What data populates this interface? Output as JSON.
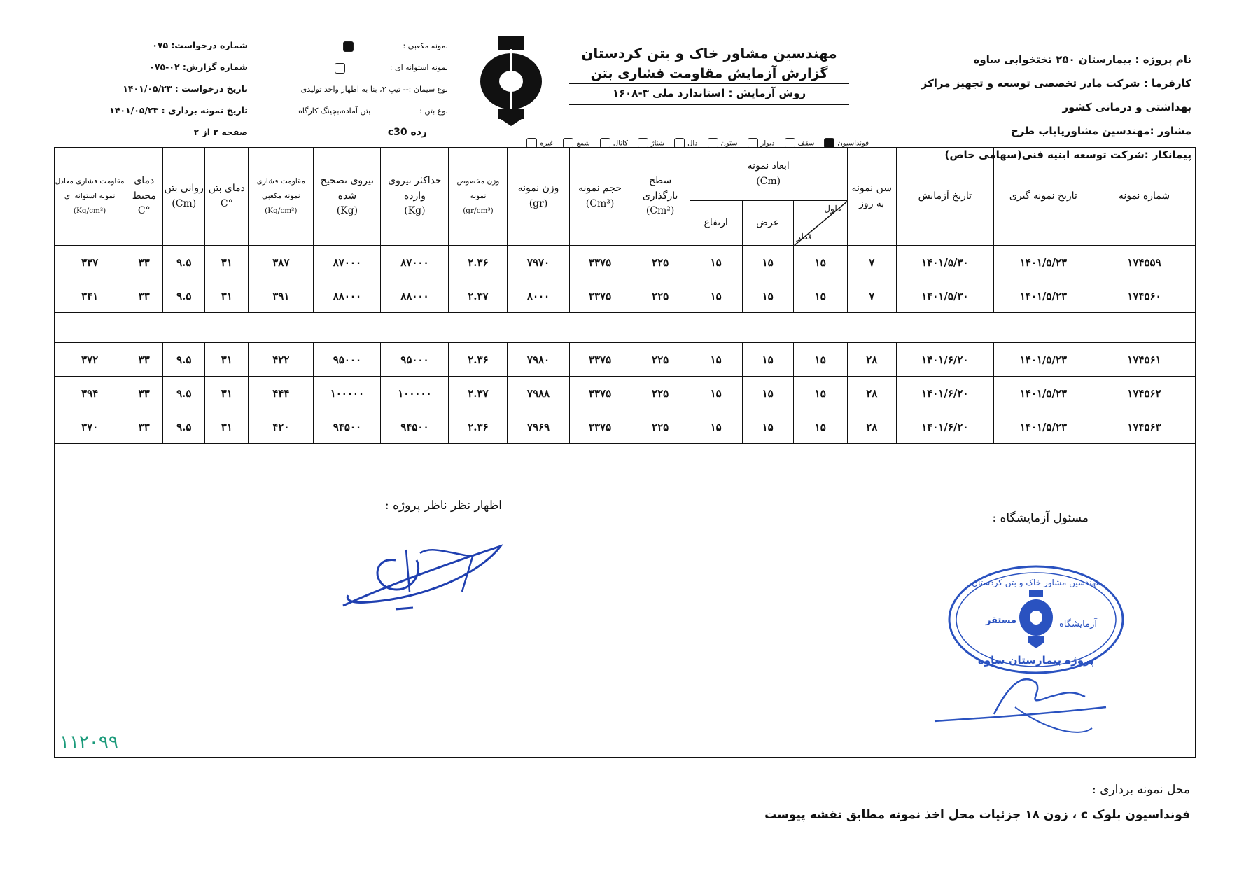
{
  "header": {
    "project": "نام پروژه : بیمارستان ۲۵۰ تختخوابی ساوه",
    "employer_line1": "کارفرما : شرکت مادر تخصصی توسعه و تجهیز مراکز",
    "employer_line2": "بهداشتی و درمانی کشور",
    "consultant": "مشاور :مهندسین مشاورپایاب طرح",
    "contractor": "پیمانکار :شرکت توسعه ابنیه فنی(سهامی خاص)",
    "company": "مهندسین مشاور خاک و بتن کردستان",
    "report_title": "گزارش آزمایش مقاومت فشاری بتن",
    "test_method": "روش آزمایش : استاندارد ملی ۳-۱۶۰۸",
    "request_no": "شماره درخواست: ۰۷۵",
    "report_no": "شماره گزارش: ۰۲-۰۷۵",
    "request_date": "تاریخ درخواست : ۱۴۰۱/۰۵/۲۳",
    "sampling_date": "تاریخ نمونه برداری : ۱۴۰۱/۰۵/۲۳",
    "page": "صفحه ۲ از ۲",
    "cube_sample_label": "نمونه مکعبی :",
    "cube_sample_checked": true,
    "cylinder_sample_label": "نمونه استوانه ای :",
    "cylinder_sample_checked": false,
    "cement_type": "نوع سیمان :-- تیپ ۲، بنا به اظهار واحد تولیدی",
    "concrete_type_label": "نوع بتن :",
    "concrete_type_value": "بتن آماده،بچینگ کارگاه",
    "grade": "رده  c30",
    "elements": [
      {
        "label": "فونداسیون",
        "checked": true
      },
      {
        "label": "سقف",
        "checked": false
      },
      {
        "label": "دیوار",
        "checked": false
      },
      {
        "label": "ستون",
        "checked": false
      },
      {
        "label": "دال",
        "checked": false
      },
      {
        "label": "شناژ",
        "checked": false
      },
      {
        "label": "کانال",
        "checked": false
      },
      {
        "label": "شمع",
        "checked": false
      },
      {
        "label": "غیره",
        "checked": false
      }
    ]
  },
  "table": {
    "headers": {
      "sample_no": "شماره نمونه",
      "sampling_date": "تاریخ نمونه گیری",
      "test_date": "تاریخ آزمایش",
      "age": "سن نمونه به روز",
      "dims": "ابعاد نمونه",
      "dims_unit": "(Cm)",
      "length": "طول",
      "diameter": "قطر",
      "width": "عرض",
      "height": "ارتفاع",
      "area": "سطح بارگذاری",
      "area_unit": "(Cm²)",
      "volume": "حجم نمونه",
      "volume_unit": "(Cm³)",
      "weight": "وزن نمونه",
      "weight_unit": "(gr)",
      "density": "وزن مخصوص نمونه",
      "density_unit": "(gr/cm³)",
      "max_force": "حداکثر نیروی وارده",
      "max_force_unit": "(Kg)",
      "corrected_force": "نیروی تصحیح شده",
      "corrected_force_unit": "(Kg)",
      "cube_strength": "مقاومت فشاری نمونه مکعبی",
      "cube_strength_unit": "(Kg/cm²)",
      "concrete_temp": "دمای بتن",
      "concrete_temp_unit": "°C",
      "slump": "روانی بتن",
      "slump_unit": "(Cm)",
      "ambient_temp": "دمای محیط",
      "ambient_temp_unit": "°C",
      "cylinder_strength": "مقاومت فشاری معادل نمونه استوانه ای",
      "cylinder_strength_unit": "(Kg/cm²)"
    },
    "rows": [
      [
        "۱۷۴۵۵۹",
        "۱۴۰۱/۵/۲۳",
        "۱۴۰۱/۵/۳۰",
        "۷",
        "۱۵",
        "۱۵",
        "۱۵",
        "۲۲۵",
        "۳۳۷۵",
        "۷۹۷۰",
        "۲.۳۶",
        "۸۷۰۰۰",
        "۸۷۰۰۰",
        "۳۸۷",
        "۳۱",
        "۹.۵",
        "۳۳",
        "۳۳۷"
      ],
      [
        "۱۷۴۵۶۰",
        "۱۴۰۱/۵/۲۳",
        "۱۴۰۱/۵/۳۰",
        "۷",
        "۱۵",
        "۱۵",
        "۱۵",
        "۲۲۵",
        "۳۳۷۵",
        "۸۰۰۰",
        "۲.۳۷",
        "۸۸۰۰۰",
        "۸۸۰۰۰",
        "۳۹۱",
        "۳۱",
        "۹.۵",
        "۳۳",
        "۳۴۱"
      ],
      [],
      [
        "۱۷۴۵۶۱",
        "۱۴۰۱/۵/۲۳",
        "۱۴۰۱/۶/۲۰",
        "۲۸",
        "۱۵",
        "۱۵",
        "۱۵",
        "۲۲۵",
        "۳۳۷۵",
        "۷۹۸۰",
        "۲.۳۶",
        "۹۵۰۰۰",
        "۹۵۰۰۰",
        "۴۲۲",
        "۳۱",
        "۹.۵",
        "۳۳",
        "۳۷۲"
      ],
      [
        "۱۷۴۵۶۲",
        "۱۴۰۱/۵/۲۳",
        "۱۴۰۱/۶/۲۰",
        "۲۸",
        "۱۵",
        "۱۵",
        "۱۵",
        "۲۲۵",
        "۳۳۷۵",
        "۷۹۸۸",
        "۲.۳۷",
        "۱۰۰۰۰۰",
        "۱۰۰۰۰۰",
        "۴۴۴",
        "۳۱",
        "۹.۵",
        "۳۳",
        "۳۹۴"
      ],
      [
        "۱۷۴۵۶۳",
        "۱۴۰۱/۵/۲۳",
        "۱۴۰۱/۶/۲۰",
        "۲۸",
        "۱۵",
        "۱۵",
        "۱۵",
        "۲۲۵",
        "۳۳۷۵",
        "۷۹۶۹",
        "۲.۳۶",
        "۹۴۵۰۰",
        "۹۴۵۰۰",
        "۴۲۰",
        "۳۱",
        "۹.۵",
        "۳۳",
        "۳۷۰"
      ]
    ]
  },
  "signatures": {
    "supervisor_label": "اظهار نظر ناظر پروژه :",
    "lab_manager_label": "مسئول آزمایشگاه :",
    "stamp_top": "مهندسین مشاور خاک و بتن کردستان",
    "stamp_left": "مستقر",
    "stamp_right": "آزمایشگاه",
    "stamp_bottom": "پروژه بیمارستان ساوه",
    "handwritten_number": "۱۱۲۰۹۹",
    "ink_color": "#1f3fb0",
    "number_color": "#1a9a7a"
  },
  "footer": {
    "location_label": "محل نمونه برداری :",
    "location_value": "فونداسیون بلوک c ، زون ۱۸ جزئیات محل اخذ نمونه مطابق نقشه پیوست"
  }
}
